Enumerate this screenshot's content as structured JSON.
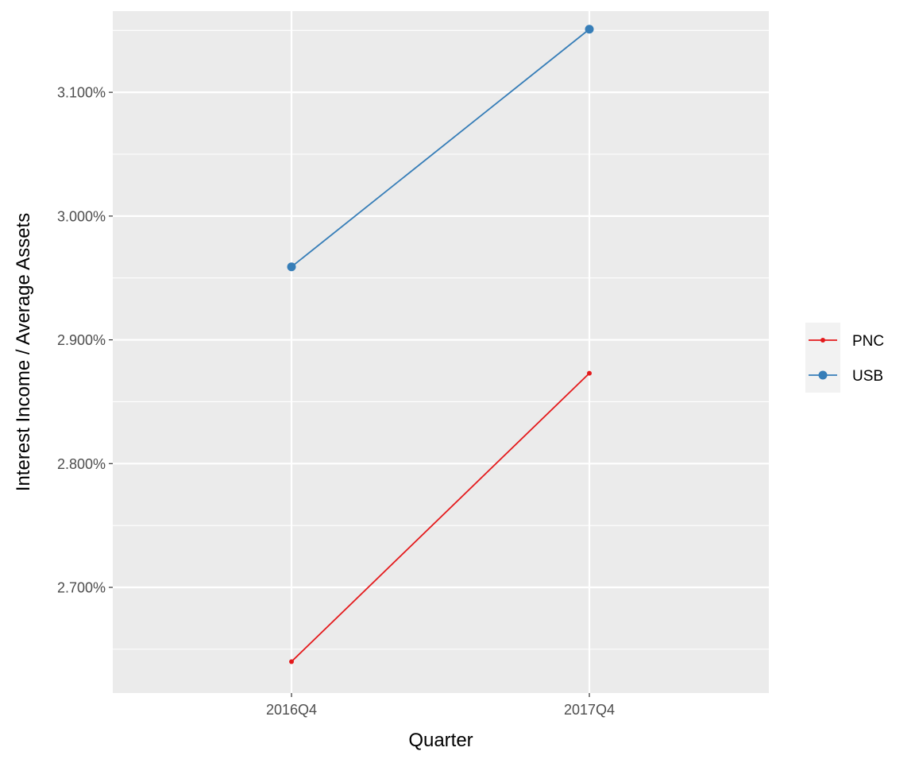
{
  "chart_data": {
    "type": "line",
    "title": "",
    "xlabel": "Quarter",
    "ylabel": "Interest Income / Average Assets",
    "categories": [
      "2016Q4",
      "2017Q4"
    ],
    "yticks": [
      2.7,
      2.8,
      2.9,
      3.0,
      3.1
    ],
    "ytick_labels": [
      "2.700%",
      "2.800%",
      "2.900%",
      "3.000%",
      "3.100%"
    ],
    "ylim": [
      2.6146,
      3.1656
    ],
    "grid": true,
    "legend_position": "right",
    "series": [
      {
        "name": "PNC",
        "values": [
          2.64,
          2.873
        ],
        "color": "#e41a1c",
        "marker": "small-dot"
      },
      {
        "name": "USB",
        "values": [
          2.959,
          3.151
        ],
        "color": "#377eb8",
        "marker": "circle"
      }
    ]
  }
}
